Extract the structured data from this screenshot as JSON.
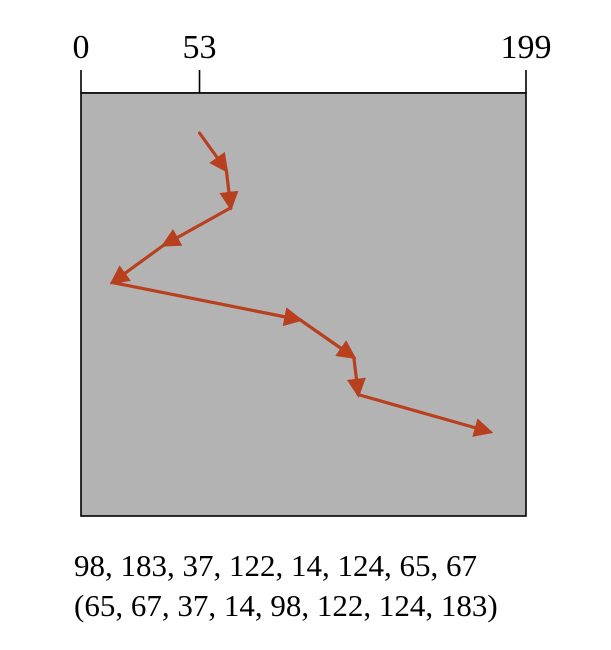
{
  "cylinder_scale": {
    "ticks": [
      {
        "value": 0,
        "label": "0"
      },
      {
        "value": 53,
        "label": "53"
      },
      {
        "value": 199,
        "label": "199"
      }
    ],
    "min": 0,
    "max": 199
  },
  "head_path": {
    "start": 53,
    "sequence": [
      65,
      67,
      37,
      14,
      98,
      122,
      124,
      183
    ]
  },
  "captions": {
    "request_queue": "98, 183, 37, 122, 14, 124, 65, 67",
    "service_order": "(65, 67, 37, 14, 98, 122, 124, 183)"
  },
  "colors": {
    "panel_fill": "#b3b3b3",
    "arrow": "#b8401f",
    "axis": "#000000"
  }
}
